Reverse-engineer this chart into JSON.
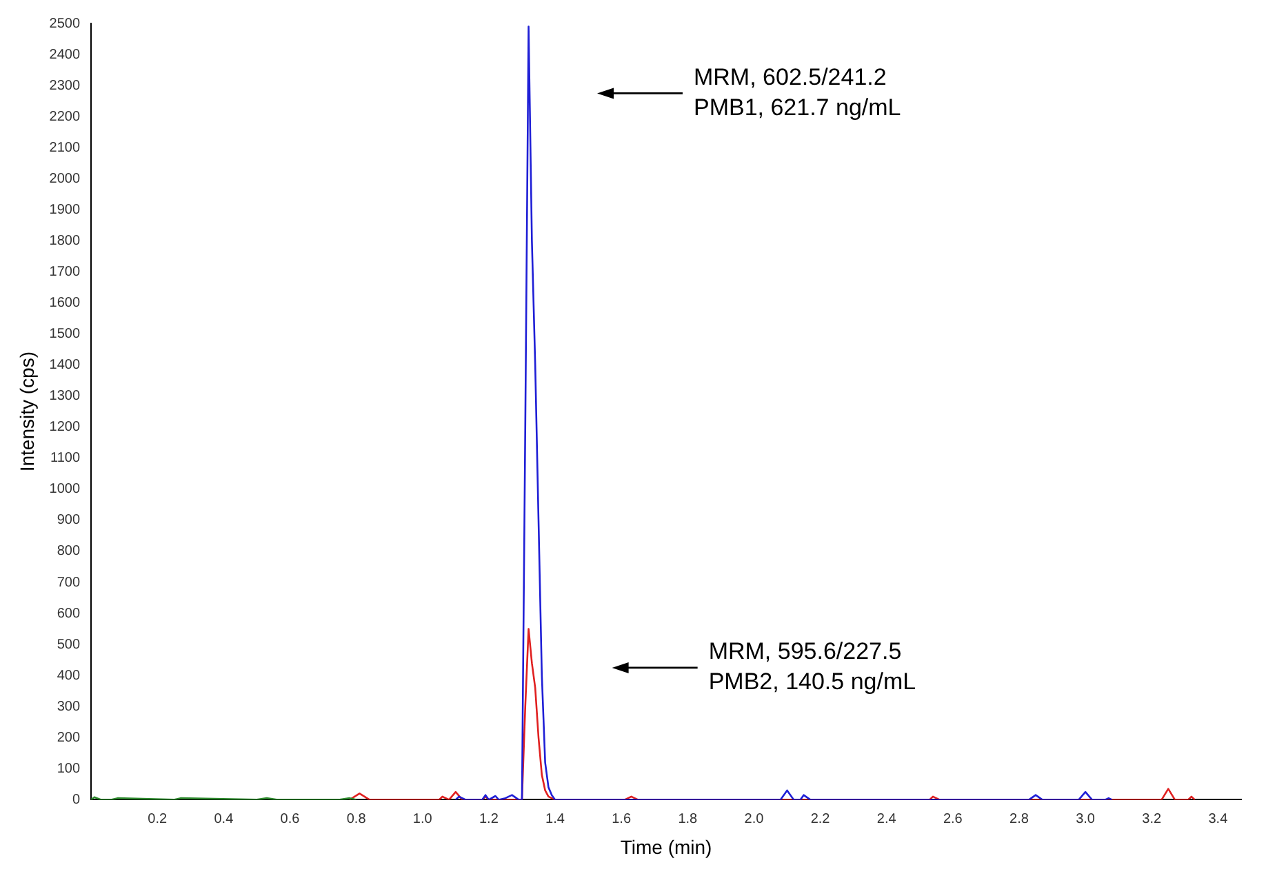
{
  "chart_data": {
    "type": "line",
    "xlabel": "Time (min)",
    "ylabel": "Intensity (cps)",
    "xlim": [
      0,
      3.47
    ],
    "xticks": [
      0.2,
      0.4,
      0.6,
      0.8,
      {
        "value": 1,
        "label": "1.0"
      },
      1.2,
      1.4,
      1.6,
      1.8,
      {
        "value": 2,
        "label": "2.0"
      },
      2.2,
      2.4,
      2.6,
      2.8,
      {
        "value": 3,
        "label": "3.0"
      },
      3.2,
      3.4
    ],
    "ylim": [
      0,
      2500
    ],
    "yticks": [
      0,
      100,
      200,
      300,
      400,
      500,
      600,
      700,
      800,
      900,
      1000,
      1100,
      1200,
      1300,
      1400,
      1500,
      1600,
      1700,
      1800,
      1900,
      2000,
      2100,
      2200,
      2300,
      2400,
      2500
    ],
    "grid": false,
    "legend": false,
    "marker": "none",
    "line_style": "solid",
    "series": [
      {
        "color": "#2e8b2e",
        "x": [
          0,
          0.01,
          0.03,
          0.06,
          0.08,
          0.25,
          0.27,
          0.5,
          0.53,
          0.56,
          0.75,
          0.78,
          0.8
        ],
        "values": [
          0,
          8,
          0,
          0,
          5,
          0,
          5,
          0,
          5,
          0,
          0,
          5,
          0
        ]
      },
      {
        "color": "#1f1fd6",
        "x": [
          1.1,
          1.11,
          1.13,
          1.18,
          1.19,
          1.2,
          1.22,
          1.23,
          1.25,
          1.27,
          1.29,
          1.3,
          1.31,
          1.32,
          1.33,
          1.34,
          1.35,
          1.36,
          1.37,
          1.38,
          1.39,
          1.4,
          1.5,
          2.08,
          2.1,
          2.12,
          2.14,
          2.15,
          2.17,
          2.83,
          2.85,
          2.87,
          2.98,
          3.0,
          3.02,
          3.06,
          3.07,
          3.08
        ],
        "values": [
          0,
          10,
          0,
          0,
          15,
          0,
          12,
          0,
          5,
          15,
          0,
          0,
          1200,
          2490,
          1800,
          1400,
          900,
          400,
          120,
          40,
          15,
          0,
          0,
          0,
          30,
          0,
          0,
          15,
          0,
          0,
          15,
          0,
          0,
          25,
          0,
          0,
          5,
          0
        ]
      },
      {
        "color": "#e02020",
        "x": [
          0.78,
          0.81,
          0.84,
          1.05,
          1.06,
          1.08,
          1.1,
          1.12,
          1.18,
          1.19,
          1.2,
          1.29,
          1.3,
          1.31,
          1.32,
          1.33,
          1.34,
          1.35,
          1.36,
          1.37,
          1.38,
          1.39,
          1.4,
          1.61,
          1.63,
          1.65,
          2.53,
          2.54,
          2.56,
          3.23,
          3.25,
          3.27,
          3.31,
          3.32,
          3.33
        ],
        "values": [
          0,
          20,
          0,
          0,
          10,
          0,
          25,
          0,
          0,
          10,
          0,
          0,
          0,
          300,
          550,
          440,
          360,
          200,
          80,
          30,
          10,
          5,
          0,
          0,
          10,
          0,
          0,
          10,
          0,
          0,
          35,
          0,
          0,
          10,
          0
        ]
      }
    ],
    "annotations": [
      "MRM, 602.5/241.2\nPMB1, 621.7 ng/mL",
      "MRM, 595.6/227.5\nPMB2, 140.5 ng/mL"
    ]
  }
}
